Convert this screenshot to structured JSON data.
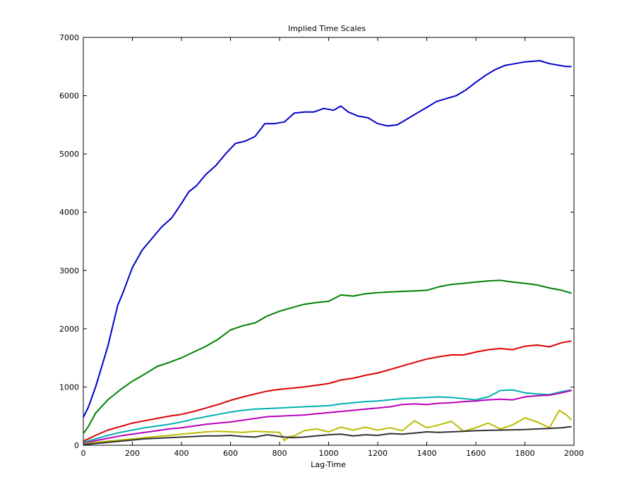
{
  "chart_data": {
    "type": "line",
    "title": "Implied Time Scales",
    "xlabel": "Lag-Time",
    "ylabel": "",
    "xlim": [
      0,
      2000
    ],
    "ylim": [
      0,
      7000
    ],
    "xticks": [
      0,
      200,
      400,
      600,
      800,
      1000,
      1200,
      1400,
      1600,
      1800,
      2000
    ],
    "yticks": [
      0,
      1000,
      2000,
      3000,
      4000,
      5000,
      6000,
      7000
    ],
    "grid": false,
    "legend": "none",
    "series": [
      {
        "color": "#0000cc",
        "x": [
          0,
          20,
          50,
          100,
          140,
          160,
          200,
          240,
          280,
          320,
          360,
          400,
          430,
          460,
          500,
          540,
          580,
          620,
          660,
          700,
          740,
          780,
          820,
          860,
          900,
          940,
          980,
          1020,
          1050,
          1080,
          1120,
          1160,
          1200,
          1240,
          1280,
          1320,
          1360,
          1400,
          1440,
          1480,
          1520,
          1560,
          1600,
          1640,
          1680,
          1720,
          1760,
          1800,
          1860,
          1900,
          1940,
          1970,
          1990
        ],
        "values": [
          480,
          650,
          1000,
          1700,
          2400,
          2600,
          3050,
          3350,
          3550,
          3750,
          3900,
          4150,
          4350,
          4450,
          4650,
          4800,
          5000,
          5180,
          5220,
          5300,
          5520,
          5520,
          5550,
          5700,
          5720,
          5720,
          5780,
          5750,
          5820,
          5720,
          5650,
          5620,
          5520,
          5480,
          5500,
          5600,
          5700,
          5800,
          5900,
          5950,
          6000,
          6100,
          6230,
          6350,
          6450,
          6520,
          6550,
          6580,
          6600,
          6550,
          6520,
          6500,
          6500
        ]
      },
      {
        "color": "#008000",
        "x": [
          0,
          20,
          50,
          100,
          150,
          200,
          250,
          300,
          350,
          400,
          450,
          500,
          550,
          600,
          650,
          700,
          750,
          800,
          850,
          900,
          950,
          1000,
          1050,
          1100,
          1150,
          1200,
          1250,
          1300,
          1350,
          1400,
          1450,
          1500,
          1550,
          1600,
          1650,
          1700,
          1750,
          1800,
          1850,
          1900,
          1950,
          1990
        ],
        "values": [
          200,
          320,
          550,
          780,
          950,
          1100,
          1220,
          1350,
          1420,
          1500,
          1600,
          1700,
          1820,
          1980,
          2050,
          2100,
          2220,
          2300,
          2360,
          2420,
          2450,
          2470,
          2580,
          2560,
          2600,
          2620,
          2630,
          2640,
          2650,
          2660,
          2720,
          2760,
          2780,
          2800,
          2820,
          2830,
          2800,
          2780,
          2750,
          2700,
          2660,
          2610
        ]
      },
      {
        "color": "#dd0000",
        "x": [
          0,
          50,
          100,
          150,
          200,
          250,
          300,
          350,
          400,
          450,
          500,
          550,
          600,
          650,
          700,
          750,
          800,
          850,
          900,
          950,
          1000,
          1050,
          1100,
          1150,
          1200,
          1250,
          1300,
          1350,
          1400,
          1450,
          1500,
          1550,
          1600,
          1650,
          1700,
          1750,
          1800,
          1850,
          1900,
          1950,
          1990
        ],
        "values": [
          70,
          170,
          260,
          320,
          380,
          420,
          460,
          500,
          530,
          580,
          640,
          700,
          770,
          830,
          880,
          930,
          960,
          980,
          1000,
          1030,
          1060,
          1120,
          1150,
          1200,
          1240,
          1300,
          1360,
          1420,
          1480,
          1520,
          1550,
          1550,
          1600,
          1640,
          1660,
          1640,
          1700,
          1720,
          1690,
          1760,
          1790
        ]
      },
      {
        "color": "#00b0b0",
        "x": [
          0,
          50,
          100,
          150,
          200,
          250,
          300,
          350,
          400,
          450,
          500,
          550,
          600,
          650,
          700,
          750,
          800,
          850,
          900,
          950,
          1000,
          1050,
          1100,
          1150,
          1200,
          1250,
          1300,
          1350,
          1400,
          1450,
          1500,
          1550,
          1600,
          1650,
          1700,
          1750,
          1800,
          1850,
          1900,
          1950,
          1990
        ],
        "values": [
          50,
          110,
          170,
          220,
          260,
          300,
          330,
          360,
          400,
          450,
          490,
          530,
          570,
          600,
          620,
          630,
          640,
          650,
          660,
          670,
          680,
          710,
          730,
          750,
          760,
          780,
          800,
          810,
          820,
          830,
          820,
          800,
          780,
          830,
          940,
          950,
          900,
          880,
          870,
          920,
          950
        ]
      },
      {
        "color": "#bb00bb",
        "x": [
          0,
          50,
          100,
          150,
          200,
          250,
          300,
          350,
          400,
          450,
          500,
          550,
          600,
          650,
          700,
          750,
          800,
          850,
          900,
          950,
          1000,
          1050,
          1100,
          1150,
          1200,
          1250,
          1300,
          1350,
          1400,
          1450,
          1500,
          1550,
          1600,
          1650,
          1700,
          1750,
          1800,
          1850,
          1900,
          1950,
          1990
        ],
        "values": [
          30,
          80,
          120,
          160,
          190,
          220,
          250,
          280,
          300,
          330,
          360,
          380,
          400,
          430,
          460,
          490,
          500,
          510,
          520,
          540,
          560,
          580,
          600,
          620,
          640,
          660,
          700,
          710,
          700,
          720,
          730,
          750,
          760,
          780,
          790,
          780,
          830,
          850,
          860,
          900,
          940
        ]
      },
      {
        "color": "#bbbb00",
        "x": [
          0,
          50,
          100,
          150,
          200,
          250,
          300,
          350,
          400,
          450,
          500,
          550,
          600,
          650,
          700,
          750,
          800,
          820,
          840,
          860,
          900,
          950,
          1000,
          1050,
          1100,
          1150,
          1200,
          1250,
          1300,
          1350,
          1400,
          1450,
          1500,
          1550,
          1600,
          1650,
          1700,
          1750,
          1800,
          1850,
          1900,
          1940,
          1970,
          1990
        ],
        "values": [
          20,
          50,
          70,
          90,
          110,
          130,
          150,
          170,
          190,
          210,
          230,
          240,
          230,
          220,
          240,
          230,
          220,
          80,
          150,
          160,
          250,
          280,
          230,
          310,
          260,
          310,
          260,
          300,
          250,
          420,
          300,
          350,
          410,
          240,
          300,
          380,
          280,
          350,
          470,
          400,
          300,
          600,
          520,
          430
        ]
      },
      {
        "color": "#333333",
        "x": [
          0,
          50,
          100,
          150,
          200,
          250,
          300,
          350,
          400,
          450,
          500,
          550,
          600,
          650,
          700,
          750,
          800,
          850,
          900,
          950,
          1000,
          1050,
          1100,
          1150,
          1200,
          1250,
          1300,
          1350,
          1400,
          1450,
          1500,
          1550,
          1600,
          1650,
          1700,
          1750,
          1800,
          1850,
          1900,
          1950,
          1990
        ],
        "values": [
          10,
          30,
          50,
          70,
          90,
          110,
          120,
          130,
          140,
          150,
          160,
          160,
          170,
          150,
          140,
          180,
          150,
          130,
          140,
          160,
          180,
          190,
          160,
          180,
          170,
          200,
          190,
          210,
          230,
          220,
          230,
          240,
          250,
          255,
          260,
          265,
          270,
          280,
          290,
          300,
          320
        ]
      }
    ]
  }
}
